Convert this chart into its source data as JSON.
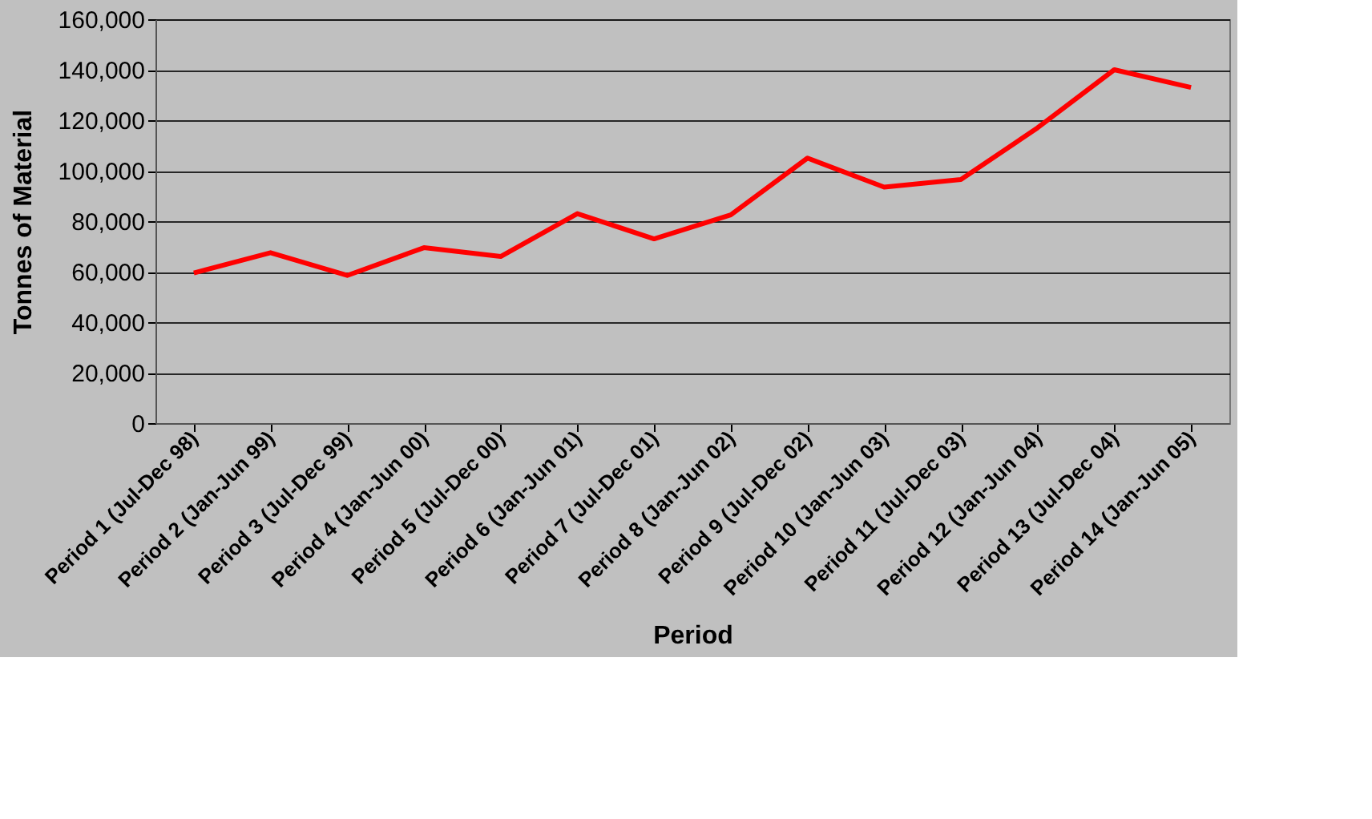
{
  "chart_data": {
    "type": "line",
    "xlabel": "Period",
    "ylabel": "Tonnes of Material",
    "categories": [
      "Period 1  (Jul-Dec 98)",
      "Period 2 (Jan-Jun 99)",
      "Period 3 (Jul-Dec 99)",
      "Period 4 (Jan-Jun 00)",
      "Period 5 (Jul-Dec 00)",
      "Period 6 (Jan-Jun 01)",
      "Period 7 (Jul-Dec 01)",
      "Period 8 (Jan-Jun 02)",
      "Period 9 (Jul-Dec 02)",
      "Period 10 (Jan-Jun 03)",
      "Period 11 (Jul-Dec 03)",
      "Period 12 (Jan-Jun 04)",
      "Period 13 (Jul-Dec 04)",
      "Period 14 (Jan-Jun 05)"
    ],
    "series": [
      {
        "color": "#ff0000",
        "values": [
          59500,
          67500,
          58500,
          69500,
          66000,
          83000,
          73000,
          82500,
          105000,
          93500,
          96500,
          117000,
          140000,
          133000
        ]
      }
    ],
    "ylim": [
      0,
      160000
    ],
    "yticks": [
      0,
      {
        "value": 20000,
        "label": "20,000"
      },
      {
        "value": 40000,
        "label": "40,000"
      },
      {
        "value": 60000,
        "label": "60,000"
      },
      {
        "value": 80000,
        "label": "80,000"
      },
      {
        "value": 100000,
        "label": "100,000"
      },
      {
        "value": 120000,
        "label": "120,000"
      },
      {
        "value": 140000,
        "label": "140,000"
      },
      {
        "value": 160000,
        "label": "160,000"
      }
    ],
    "grid": "y",
    "legend": false,
    "marker": "none",
    "line_style": "solid"
  }
}
